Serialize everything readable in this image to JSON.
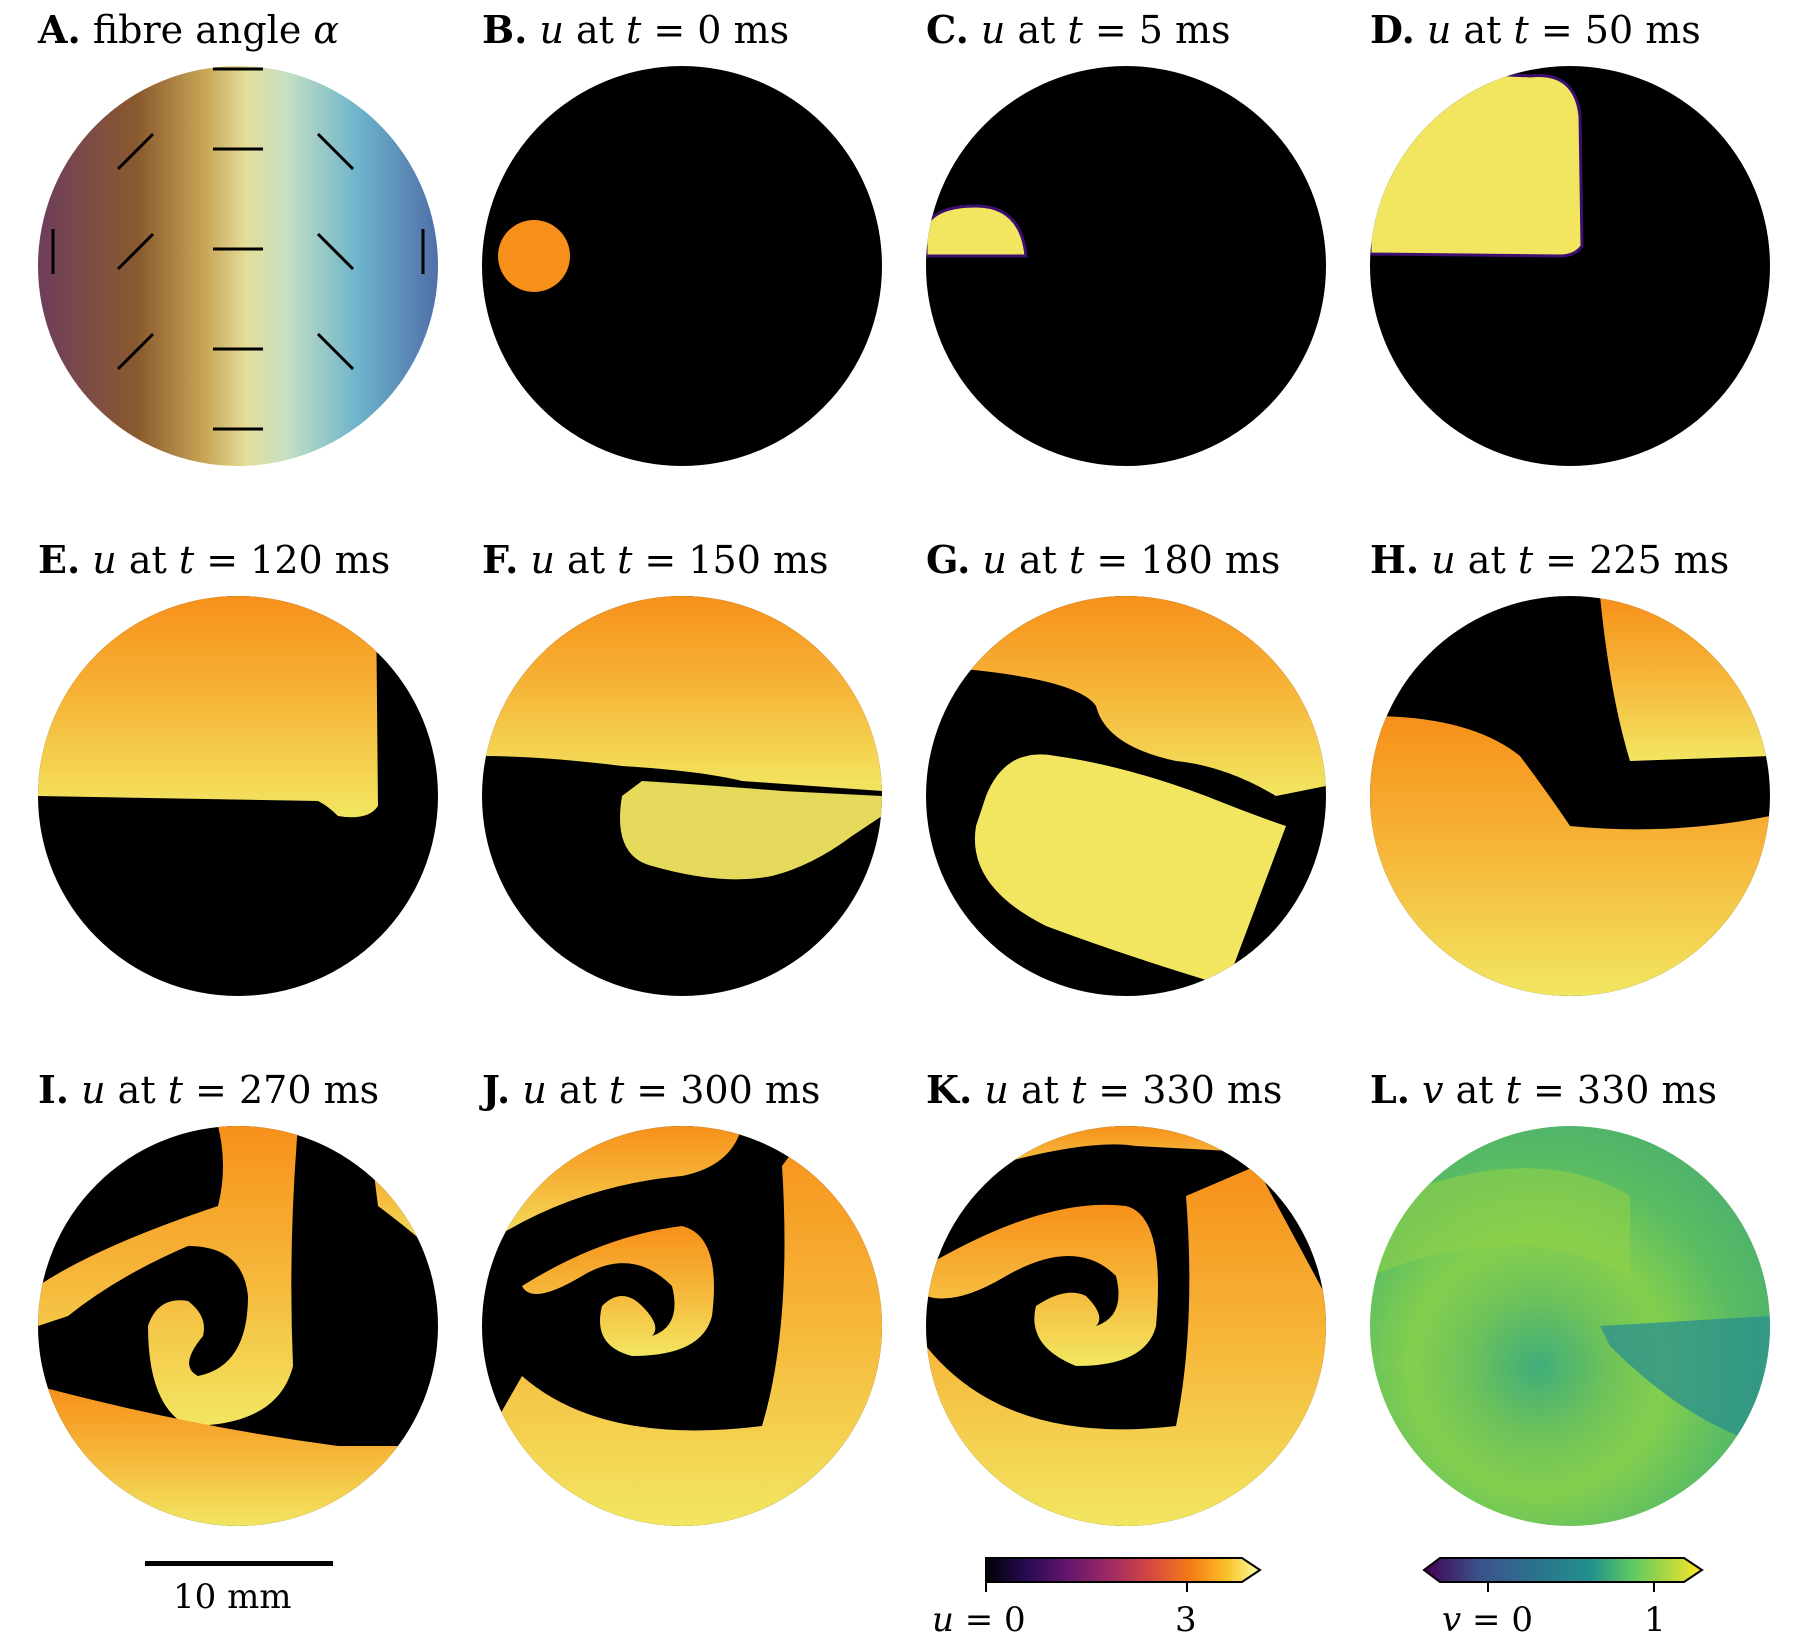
{
  "panels": [
    {
      "letter": "A.",
      "var": "",
      "text": "fibre angle ",
      "math": "α",
      "time": "",
      "kind": "fibre"
    },
    {
      "letter": "B.",
      "var": "u",
      "text": " at ",
      "math": "t",
      "time": " = 0 ms",
      "kind": "u0"
    },
    {
      "letter": "C.",
      "var": "u",
      "text": " at ",
      "math": "t",
      "time": " = 5 ms",
      "kind": "u5"
    },
    {
      "letter": "D.",
      "var": "u",
      "text": " at ",
      "math": "t",
      "time": " = 50 ms",
      "kind": "u50"
    },
    {
      "letter": "E.",
      "var": "u",
      "text": " at ",
      "math": "t",
      "time": " = 120 ms",
      "kind": "u120"
    },
    {
      "letter": "F.",
      "var": "u",
      "text": " at ",
      "math": "t",
      "time": " = 150 ms",
      "kind": "u150"
    },
    {
      "letter": "G.",
      "var": "u",
      "text": " at ",
      "math": "t",
      "time": " = 180 ms",
      "kind": "u180"
    },
    {
      "letter": "H.",
      "var": "u",
      "text": " at ",
      "math": "t",
      "time": " = 225 ms",
      "kind": "u225"
    },
    {
      "letter": "I.",
      "var": "u",
      "text": " at ",
      "math": "t",
      "time": " = 270 ms",
      "kind": "u270"
    },
    {
      "letter": "J.",
      "var": "u",
      "text": " at ",
      "math": "t",
      "time": " = 300 ms",
      "kind": "u300"
    },
    {
      "letter": "K.",
      "var": "u",
      "text": " at ",
      "math": "t",
      "time": " = 330 ms",
      "kind": "u330"
    },
    {
      "letter": "L.",
      "var": "v",
      "text": " at ",
      "math": "t",
      "time": " = 330 ms",
      "kind": "v330"
    }
  ],
  "scalebar": {
    "label": "10 mm"
  },
  "colorbar_u": {
    "var": "u",
    "eq": " = 0",
    "tick_max": "3"
  },
  "colorbar_v": {
    "var": "v",
    "eq": " = 0",
    "tick_max": "1"
  },
  "colors": {
    "background_field": "#000000",
    "excited": "#f2e661",
    "stimulus": "#f7901a",
    "front": "#3b0f70",
    "fibre_left": "#6d3d5c",
    "fibre_mid": "#e4de9a",
    "fibre_right": "#4f6fa8",
    "v_field": "#7cc94f",
    "v_low": "#2a8f8f"
  }
}
